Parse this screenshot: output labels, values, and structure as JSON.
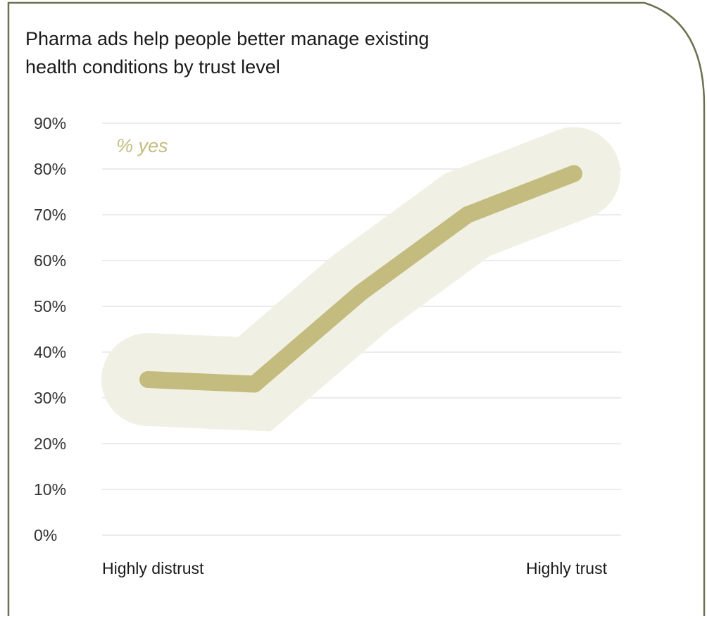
{
  "chart_data": {
    "type": "line",
    "title_lines": [
      "Pharma ads help people better manage existing",
      "health conditions by trust level"
    ],
    "annotation": "% yes",
    "x_labels": [
      "Highly distrust",
      "Highly trust"
    ],
    "y_ticks": [
      "0%",
      "10%",
      "20%",
      "30%",
      "40%",
      "50%",
      "60%",
      "70%",
      "80%",
      "90%"
    ],
    "ylim": [
      0,
      90
    ],
    "x": [
      1,
      2,
      3,
      4,
      5
    ],
    "series": [
      {
        "values": [
          34,
          33,
          53,
          70,
          79
        ]
      }
    ],
    "grid": true,
    "colors": {
      "line": "#c3bc7e",
      "band": "#f1f0e4",
      "grid": "#e6e6e6",
      "border": "#6b7151",
      "annotation": "#c3bc7e"
    }
  }
}
